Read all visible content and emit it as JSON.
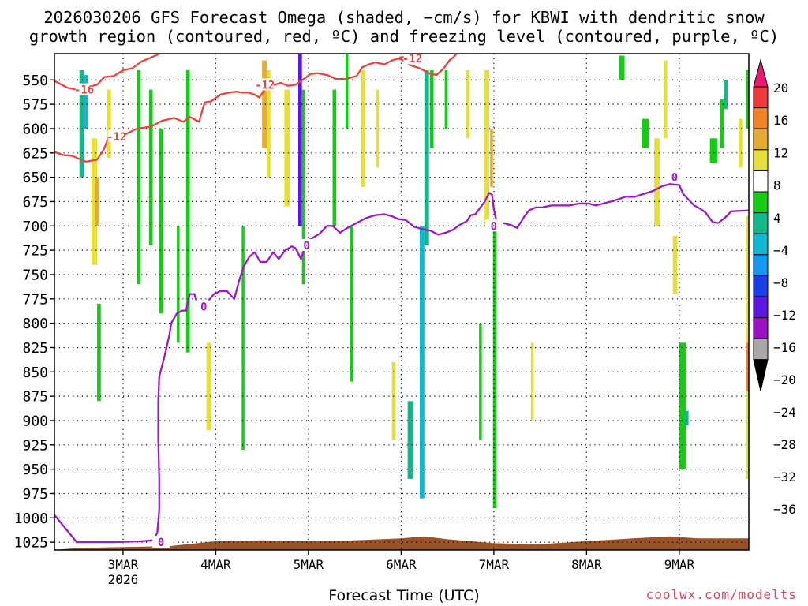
{
  "header": {
    "title_line1": "2026030206 GFS Forecast Omega (shaded, −cm/s) for KBWI with dendritic snow",
    "title_line2": "growth region (contoured, red, ºC) and freezing level (contoured, purple, ºC)"
  },
  "footer": {
    "xaxis_title": "Forecast Time (UTC)",
    "credit": "coolwx.com/modelts"
  },
  "chart_data": {
    "type": "heatmap",
    "title": "2026030206 GFS Forecast Omega (shaded, −cm/s) for KBWI with dendritic snow growth region (contoured, red, ºC) and freezing level (contoured, purple, ºC)",
    "xlabel": "Forecast Time (UTC)",
    "ylabel": "",
    "x_ticks": [
      "3MAR",
      "4MAR",
      "5MAR",
      "6MAR",
      "7MAR",
      "8MAR",
      "9MAR"
    ],
    "x_tick_sublabel": "2026",
    "x_range_days": [
      2.26,
      9.75
    ],
    "y_ticks": [
      550,
      575,
      600,
      625,
      650,
      675,
      700,
      725,
      750,
      775,
      800,
      825,
      850,
      875,
      900,
      925,
      950,
      975,
      1000,
      1025
    ],
    "y_range_hpa": [
      523,
      1033
    ],
    "grid": true,
    "colorbar": {
      "ticks": [
        "20",
        "16",
        "12",
        "8",
        "4",
        "−4",
        "−8",
        "−12",
        "−16",
        "−20",
        "−24",
        "−28",
        "−32",
        "−36"
      ],
      "colors": [
        "#e8186e",
        "#f03a3a",
        "#f08228",
        "#e4aa32",
        "#e6de3a",
        "#ffffff",
        "#14cc14",
        "#12b888",
        "#10b6d2",
        "#1298f0",
        "#1a3ee8",
        "#5e16e4",
        "#9a12c4",
        "#a8a8a8",
        "#000000"
      ]
    },
    "series": [
      {
        "name": "0",
        "color": "#9a1ac8",
        "label_positions": [
          [
            3.41,
            1025
          ],
          [
            3.87,
            783
          ],
          [
            4.98,
            720
          ],
          [
            7.0,
            700
          ],
          [
            8.95,
            650
          ]
        ],
        "points": [
          [
            2.26,
            997
          ],
          [
            2.5,
            1025
          ],
          [
            2.9,
            1025
          ],
          [
            3.2,
            1024
          ],
          [
            3.33,
            1023
          ],
          [
            3.37,
            1015
          ],
          [
            3.39,
            992
          ],
          [
            3.39,
            960
          ],
          [
            3.38,
            920
          ],
          [
            3.38,
            880
          ],
          [
            3.39,
            855
          ],
          [
            3.45,
            833
          ],
          [
            3.5,
            812
          ],
          [
            3.52,
            800
          ],
          [
            3.58,
            790
          ],
          [
            3.64,
            787
          ],
          [
            3.68,
            787
          ],
          [
            3.72,
            770
          ],
          [
            3.77,
            770
          ],
          [
            3.82,
            787
          ],
          [
            3.88,
            783
          ],
          [
            3.92,
            777
          ],
          [
            3.98,
            770
          ],
          [
            4.05,
            767
          ],
          [
            4.12,
            767
          ],
          [
            4.2,
            775
          ],
          [
            4.25,
            757
          ],
          [
            4.3,
            742
          ],
          [
            4.36,
            732
          ],
          [
            4.42,
            727
          ],
          [
            4.48,
            737
          ],
          [
            4.55,
            737
          ],
          [
            4.62,
            727
          ],
          [
            4.68,
            734
          ],
          [
            4.75,
            725
          ],
          [
            4.82,
            721
          ],
          [
            4.86,
            723
          ],
          [
            4.92,
            734
          ],
          [
            4.98,
            716
          ],
          [
            5.05,
            712
          ],
          [
            5.12,
            708
          ],
          [
            5.2,
            700
          ],
          [
            5.26,
            700
          ],
          [
            5.34,
            707
          ],
          [
            5.42,
            702
          ],
          [
            5.52,
            697
          ],
          [
            5.62,
            692
          ],
          [
            5.72,
            689
          ],
          [
            5.82,
            688
          ],
          [
            5.9,
            690
          ],
          [
            5.97,
            693
          ],
          [
            6.05,
            694
          ],
          [
            6.14,
            701
          ],
          [
            6.22,
            703
          ],
          [
            6.32,
            705
          ],
          [
            6.4,
            709
          ],
          [
            6.48,
            707
          ],
          [
            6.56,
            704
          ],
          [
            6.63,
            699
          ],
          [
            6.71,
            695
          ],
          [
            6.75,
            689
          ],
          [
            6.8,
            688
          ],
          [
            6.84,
            683
          ],
          [
            6.9,
            675
          ],
          [
            6.95,
            666
          ],
          [
            6.98,
            668
          ],
          [
            7.0,
            683
          ],
          [
            7.03,
            696
          ],
          [
            7.1,
            697
          ],
          [
            7.18,
            699
          ],
          [
            7.25,
            702
          ],
          [
            7.3,
            695
          ],
          [
            7.33,
            690
          ],
          [
            7.38,
            684
          ],
          [
            7.45,
            681
          ],
          [
            7.52,
            681
          ],
          [
            7.62,
            679
          ],
          [
            7.72,
            679
          ],
          [
            7.82,
            679
          ],
          [
            7.92,
            677
          ],
          [
            8.02,
            677
          ],
          [
            8.1,
            679
          ],
          [
            8.22,
            676
          ],
          [
            8.3,
            674
          ],
          [
            8.42,
            670
          ],
          [
            8.52,
            670
          ],
          [
            8.62,
            667
          ],
          [
            8.72,
            664
          ],
          [
            8.82,
            659
          ],
          [
            8.9,
            657
          ],
          [
            9.0,
            658
          ],
          [
            9.04,
            667
          ],
          [
            9.1,
            673
          ],
          [
            9.16,
            679
          ],
          [
            9.22,
            682
          ],
          [
            9.28,
            686
          ],
          [
            9.36,
            696
          ],
          [
            9.42,
            697
          ],
          [
            9.5,
            691
          ],
          [
            9.56,
            685
          ],
          [
            9.75,
            684
          ]
        ]
      },
      {
        "name": "-12",
        "color": "#e8453f",
        "label_positions": [
          [
            2.93,
            608
          ],
          [
            4.53,
            555
          ]
        ],
        "points": [
          [
            2.26,
            624
          ],
          [
            2.35,
            627
          ],
          [
            2.45,
            628
          ],
          [
            2.6,
            634
          ],
          [
            2.72,
            632
          ],
          [
            2.79,
            622
          ],
          [
            2.84,
            610
          ],
          [
            2.92,
            605
          ],
          [
            3.02,
            606
          ],
          [
            3.15,
            600
          ],
          [
            3.3,
            598
          ],
          [
            3.42,
            592
          ],
          [
            3.55,
            589
          ],
          [
            3.65,
            593
          ],
          [
            3.72,
            588
          ],
          [
            3.82,
            593
          ],
          [
            3.88,
            573
          ],
          [
            3.95,
            572
          ],
          [
            4.05,
            565
          ],
          [
            4.15,
            563
          ],
          [
            4.22,
            562
          ],
          [
            4.28,
            563
          ],
          [
            4.35,
            563
          ],
          [
            4.42,
            565
          ],
          [
            4.47,
            568
          ],
          [
            4.53,
            560
          ],
          [
            4.6,
            556
          ],
          [
            4.7,
            553
          ],
          [
            4.78,
            556
          ],
          [
            4.86,
            555
          ],
          [
            4.95,
            549
          ],
          [
            5.02,
            544
          ],
          [
            5.1,
            543
          ],
          [
            5.2,
            545
          ],
          [
            5.3,
            549
          ],
          [
            5.4,
            549
          ],
          [
            5.52,
            546
          ],
          [
            5.58,
            537
          ],
          [
            5.65,
            534
          ],
          [
            5.72,
            532
          ],
          [
            5.82,
            534
          ],
          [
            5.9,
            530
          ],
          [
            5.97,
            528
          ],
          [
            6.05,
            531
          ],
          [
            6.1,
            535
          ],
          [
            6.2,
            538
          ],
          [
            6.3,
            543
          ],
          [
            6.38,
            545
          ],
          [
            6.46,
            538
          ],
          [
            6.52,
            530
          ],
          [
            6.57,
            526
          ],
          [
            6.6,
            523
          ]
        ]
      },
      {
        "name": "-12",
        "color": "#e8453f",
        "label_positions": [
          [
            6.12,
            528
          ]
        ],
        "points": [
          [
            5.98,
            527
          ],
          [
            6.05,
            526
          ],
          [
            6.12,
            527
          ],
          [
            6.2,
            528
          ]
        ]
      },
      {
        "name": "-16",
        "color": "#e8453f",
        "label_positions": [
          [
            2.58,
            560
          ]
        ],
        "points": [
          [
            2.26,
            551
          ],
          [
            2.32,
            554
          ],
          [
            2.4,
            558
          ],
          [
            2.5,
            560
          ],
          [
            2.62,
            557
          ],
          [
            2.72,
            555
          ],
          [
            2.8,
            547
          ],
          [
            2.9,
            546
          ],
          [
            3.0,
            540
          ],
          [
            3.1,
            538
          ],
          [
            3.2,
            531
          ],
          [
            3.3,
            527
          ],
          [
            3.4,
            523
          ]
        ]
      }
    ],
    "omega_cells": [
      {
        "t0": 2.53,
        "t1": 2.58,
        "p0": 540,
        "p1": 650,
        "val": -8
      },
      {
        "t0": 2.58,
        "t1": 2.62,
        "p0": 545,
        "p1": 600,
        "val": -14
      },
      {
        "t0": 2.66,
        "t1": 2.72,
        "p0": 610,
        "p1": 740,
        "val": 6
      },
      {
        "t0": 2.7,
        "t1": 2.74,
        "p0": 650,
        "p1": 700,
        "val": 10
      },
      {
        "t0": 2.72,
        "t1": 2.76,
        "p0": 780,
        "p1": 880,
        "val": -6
      },
      {
        "t0": 2.83,
        "t1": 2.87,
        "p0": 560,
        "p1": 630,
        "val": 6
      },
      {
        "t0": 3.15,
        "t1": 3.19,
        "p0": 540,
        "p1": 760,
        "val": -6
      },
      {
        "t0": 3.28,
        "t1": 3.32,
        "p0": 560,
        "p1": 720,
        "val": -6
      },
      {
        "t0": 3.39,
        "t1": 3.43,
        "p0": 600,
        "p1": 790,
        "val": -6
      },
      {
        "t0": 3.58,
        "t1": 3.61,
        "p0": 700,
        "p1": 820,
        "val": -6
      },
      {
        "t0": 3.68,
        "t1": 3.72,
        "p0": 540,
        "p1": 830,
        "val": -6
      },
      {
        "t0": 3.9,
        "t1": 3.95,
        "p0": 820,
        "p1": 910,
        "val": 6
      },
      {
        "t0": 4.28,
        "t1": 4.31,
        "p0": 700,
        "p1": 930,
        "val": -6
      },
      {
        "t0": 4.5,
        "t1": 4.55,
        "p0": 530,
        "p1": 620,
        "val": 10
      },
      {
        "t0": 4.55,
        "t1": 4.59,
        "p0": 540,
        "p1": 650,
        "val": 6
      },
      {
        "t0": 4.74,
        "t1": 4.8,
        "p0": 560,
        "p1": 680,
        "val": 6
      },
      {
        "t0": 4.89,
        "t1": 4.93,
        "p0": 523,
        "p1": 700,
        "val": -24
      },
      {
        "t0": 4.93,
        "t1": 4.96,
        "p0": 560,
        "p1": 760,
        "val": -6
      },
      {
        "t0": 5.26,
        "t1": 5.3,
        "p0": 560,
        "p1": 700,
        "val": -6
      },
      {
        "t0": 5.4,
        "t1": 5.43,
        "p0": 520,
        "p1": 600,
        "val": -6
      },
      {
        "t0": 5.45,
        "t1": 5.48,
        "p0": 700,
        "p1": 860,
        "val": -6
      },
      {
        "t0": 5.57,
        "t1": 5.61,
        "p0": 540,
        "p1": 660,
        "val": 6
      },
      {
        "t0": 5.73,
        "t1": 5.76,
        "p0": 560,
        "p1": 640,
        "val": 6
      },
      {
        "t0": 5.9,
        "t1": 5.94,
        "p0": 840,
        "p1": 920,
        "val": 6
      },
      {
        "t0": 6.07,
        "t1": 6.13,
        "p0": 880,
        "p1": 960,
        "val": -8
      },
      {
        "t0": 6.2,
        "t1": 6.25,
        "p0": 700,
        "p1": 980,
        "val": -14
      },
      {
        "t0": 6.25,
        "t1": 6.3,
        "p0": 540,
        "p1": 720,
        "val": -8
      },
      {
        "t0": 6.31,
        "t1": 6.35,
        "p0": 540,
        "p1": 620,
        "val": -6
      },
      {
        "t0": 6.47,
        "t1": 6.5,
        "p0": 540,
        "p1": 600,
        "val": -6
      },
      {
        "t0": 6.7,
        "t1": 6.74,
        "p0": 540,
        "p1": 610,
        "val": 6
      },
      {
        "t0": 6.84,
        "t1": 6.87,
        "p0": 800,
        "p1": 920,
        "val": -6
      },
      {
        "t0": 6.9,
        "t1": 6.95,
        "p0": 540,
        "p1": 700,
        "val": 6
      },
      {
        "t0": 6.96,
        "t1": 6.99,
        "p0": 600,
        "p1": 660,
        "val": 10
      },
      {
        "t0": 6.99,
        "t1": 7.03,
        "p0": 700,
        "p1": 990,
        "val": -6
      },
      {
        "t0": 7.4,
        "t1": 7.43,
        "p0": 820,
        "p1": 900,
        "val": 6
      },
      {
        "t0": 8.35,
        "t1": 8.41,
        "p0": 525,
        "p1": 550,
        "val": -6
      },
      {
        "t0": 8.6,
        "t1": 8.67,
        "p0": 590,
        "p1": 620,
        "val": -6
      },
      {
        "t0": 8.73,
        "t1": 8.79,
        "p0": 610,
        "p1": 700,
        "val": 6
      },
      {
        "t0": 8.83,
        "t1": 8.87,
        "p0": 530,
        "p1": 610,
        "val": 6
      },
      {
        "t0": 8.93,
        "t1": 8.98,
        "p0": 710,
        "p1": 770,
        "val": 6
      },
      {
        "t0": 9.0,
        "t1": 9.07,
        "p0": 820,
        "p1": 950,
        "val": -6
      },
      {
        "t0": 9.06,
        "t1": 9.1,
        "p0": 890,
        "p1": 905,
        "val": -10
      },
      {
        "t0": 9.33,
        "t1": 9.41,
        "p0": 610,
        "p1": 635,
        "val": -6
      },
      {
        "t0": 9.44,
        "t1": 9.48,
        "p0": 570,
        "p1": 620,
        "val": -6
      },
      {
        "t0": 9.48,
        "t1": 9.52,
        "p0": 550,
        "p1": 580,
        "val": -10
      },
      {
        "t0": 9.64,
        "t1": 9.68,
        "p0": 590,
        "p1": 640,
        "val": 6
      },
      {
        "t0": 9.72,
        "t1": 9.75,
        "p0": 540,
        "p1": 600,
        "val": -6
      },
      {
        "t0": 9.72,
        "t1": 9.75,
        "p0": 690,
        "p1": 960,
        "val": 8
      },
      {
        "t0": 9.72,
        "t1": 9.75,
        "p0": 820,
        "p1": 870,
        "val": 16
      }
    ],
    "terrain_color": "#9c5228",
    "terrain": [
      [
        2.26,
        1033
      ],
      [
        2.5,
        1031
      ],
      [
        3.0,
        1030
      ],
      [
        3.5,
        1029
      ],
      [
        3.7,
        1027
      ],
      [
        4.0,
        1024
      ],
      [
        4.5,
        1023
      ],
      [
        5.0,
        1024
      ],
      [
        5.5,
        1023
      ],
      [
        6.0,
        1021
      ],
      [
        6.25,
        1019
      ],
      [
        6.5,
        1022
      ],
      [
        7.0,
        1026
      ],
      [
        7.5,
        1027
      ],
      [
        8.0,
        1024
      ],
      [
        8.5,
        1021
      ],
      [
        8.9,
        1019
      ],
      [
        9.2,
        1021
      ],
      [
        9.75,
        1021
      ]
    ]
  }
}
